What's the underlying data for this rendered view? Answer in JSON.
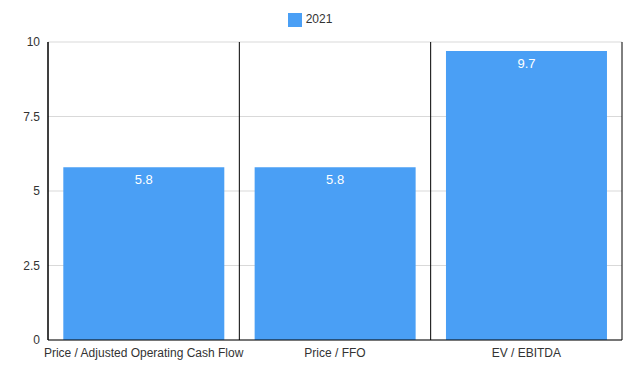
{
  "chart_data": {
    "type": "bar",
    "categories": [
      "Price / Adjusted Operating Cash Flow",
      "Price / FFO",
      "EV / EBITDA"
    ],
    "series": [
      {
        "name": "2021",
        "color": "#4a9ff5",
        "values": [
          5.8,
          5.8,
          9.7
        ]
      }
    ],
    "ylim": [
      0,
      10
    ],
    "yticks": [
      0,
      2.5,
      5,
      7.5,
      10
    ],
    "grid": true,
    "legend": "top",
    "data_labels": true
  }
}
